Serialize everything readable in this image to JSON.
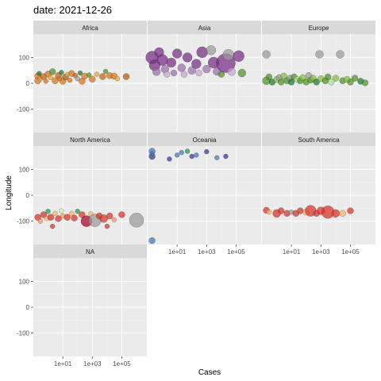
{
  "chart_data": {
    "type": "scatter",
    "title": "date: 2021-12-26",
    "xlabel": "Cases",
    "ylabel": "Longitude",
    "x_scale": "log10",
    "xlim": [
      0.1,
      5000000
    ],
    "ylim": [
      -190,
      190
    ],
    "x_ticks": [
      10,
      1000,
      100000
    ],
    "x_tick_labels": [
      "1e+01",
      "1e+03",
      "1e+05"
    ],
    "y_ticks": [
      100,
      0,
      -100
    ],
    "y_tick_labels": [
      "100",
      "0",
      "-100"
    ],
    "grid": true,
    "facets": [
      "Africa",
      "Asia",
      "Europe",
      "North America",
      "Oceania",
      "South America",
      "NA"
    ],
    "panel_background": "#EBEBEB",
    "strip_background": "#D9D9D9",
    "series": [
      {
        "facet": "Africa",
        "points": [
          {
            "x": 0.2,
            "y": 28,
            "r": 4,
            "color": "#D97014"
          },
          {
            "x": 0.2,
            "y": 10,
            "r": 4,
            "color": "#D97014"
          },
          {
            "x": 0.25,
            "y": 38,
            "r": 3,
            "color": "#1B7837"
          },
          {
            "x": 0.3,
            "y": 18,
            "r": 3,
            "color": "#E8A33D"
          },
          {
            "x": 0.5,
            "y": 26,
            "r": 4,
            "color": "#C5620A"
          },
          {
            "x": 0.7,
            "y": 8,
            "r": 3,
            "color": "#D97014"
          },
          {
            "x": 1,
            "y": 36,
            "r": 4,
            "color": "#D97014"
          },
          {
            "x": 1.5,
            "y": 22,
            "r": 3,
            "color": "#E8A33D"
          },
          {
            "x": 2,
            "y": 45,
            "r": 4,
            "color": "#4D9221"
          },
          {
            "x": 3,
            "y": 10,
            "r": 4,
            "color": "#D97014"
          },
          {
            "x": 5,
            "y": 30,
            "r": 4,
            "color": "#C5620A"
          },
          {
            "x": 6,
            "y": 18,
            "r": 3,
            "color": "#D97014"
          },
          {
            "x": 8,
            "y": 42,
            "r": 3,
            "color": "#1B7837"
          },
          {
            "x": 10,
            "y": 8,
            "r": 4,
            "color": "#D97014"
          },
          {
            "x": 15,
            "y": 24,
            "r": 4,
            "color": "#B05A0A"
          },
          {
            "x": 20,
            "y": 34,
            "r": 3,
            "color": "#E8A33D"
          },
          {
            "x": 30,
            "y": 12,
            "r": 3,
            "color": "#D97014"
          },
          {
            "x": 40,
            "y": 38,
            "r": 4,
            "color": "#D97014"
          },
          {
            "x": 70,
            "y": 30,
            "r": 3,
            "color": "#C5620A"
          },
          {
            "x": 100,
            "y": 18,
            "r": 3,
            "color": "#999999"
          },
          {
            "x": 150,
            "y": 40,
            "r": 3,
            "color": "#1B7837"
          },
          {
            "x": 200,
            "y": 8,
            "r": 4,
            "color": "#D97014"
          },
          {
            "x": 300,
            "y": 28,
            "r": 4,
            "color": "#D97014"
          },
          {
            "x": 600,
            "y": 32,
            "r": 3,
            "color": "#4D9221"
          },
          {
            "x": 1000,
            "y": 16,
            "r": 4,
            "color": "#D97014"
          },
          {
            "x": 2000,
            "y": 35,
            "r": 3,
            "color": "#E8A33D"
          },
          {
            "x": 5000,
            "y": 26,
            "r": 4,
            "color": "#C5620A"
          },
          {
            "x": 8000,
            "y": 46,
            "r": 3,
            "color": "#4D9221"
          },
          {
            "x": 15000,
            "y": 30,
            "r": 4,
            "color": "#D97014"
          },
          {
            "x": 30000,
            "y": 28,
            "r": 4,
            "color": "#D97014"
          },
          {
            "x": 50000,
            "y": 18,
            "r": 3,
            "color": "#E8A33D"
          },
          {
            "x": 200000,
            "y": 26,
            "r": 4,
            "color": "#B05A0A"
          }
        ]
      },
      {
        "facet": "Asia",
        "points": [
          {
            "x": 0.2,
            "y": 100,
            "r": 8,
            "color": "#762A83"
          },
          {
            "x": 0.3,
            "y": 70,
            "r": 7,
            "color": "#762A83"
          },
          {
            "x": 0.4,
            "y": 45,
            "r": 5,
            "color": "#9970AB"
          },
          {
            "x": 0.6,
            "y": 120,
            "r": 6,
            "color": "#762A83"
          },
          {
            "x": 1,
            "y": 90,
            "r": 7,
            "color": "#762A83"
          },
          {
            "x": 1.5,
            "y": 55,
            "r": 5,
            "color": "#9970AB"
          },
          {
            "x": 2,
            "y": 35,
            "r": 4,
            "color": "#C2A5CF"
          },
          {
            "x": 4,
            "y": 80,
            "r": 6,
            "color": "#762A83"
          },
          {
            "x": 6,
            "y": 40,
            "r": 4,
            "color": "#9970AB"
          },
          {
            "x": 10,
            "y": 115,
            "r": 6,
            "color": "#762A83"
          },
          {
            "x": 20,
            "y": 60,
            "r": 5,
            "color": "#9970AB"
          },
          {
            "x": 30,
            "y": 35,
            "r": 4,
            "color": "#C2A5CF"
          },
          {
            "x": 50,
            "y": 100,
            "r": 6,
            "color": "#762A83"
          },
          {
            "x": 100,
            "y": 50,
            "r": 5,
            "color": "#9970AB"
          },
          {
            "x": 200,
            "y": 75,
            "r": 6,
            "color": "#762A83"
          },
          {
            "x": 300,
            "y": 40,
            "r": 4,
            "color": "#C2A5CF"
          },
          {
            "x": 500,
            "y": 120,
            "r": 7,
            "color": "#762A83"
          },
          {
            "x": 1000,
            "y": 55,
            "r": 5,
            "color": "#9970AB"
          },
          {
            "x": 2000,
            "y": 128,
            "r": 6,
            "color": "#999999"
          },
          {
            "x": 3000,
            "y": 80,
            "r": 7,
            "color": "#762A83"
          },
          {
            "x": 5000,
            "y": 46,
            "r": 5,
            "color": "#9970AB"
          },
          {
            "x": 10000,
            "y": 35,
            "r": 4,
            "color": "#4D9221"
          },
          {
            "x": 20000,
            "y": 78,
            "r": 12,
            "color": "#762A83"
          },
          {
            "x": 30000,
            "y": 110,
            "r": 7,
            "color": "#999999"
          },
          {
            "x": 50000,
            "y": 45,
            "r": 5,
            "color": "#C2A5CF"
          },
          {
            "x": 150000,
            "y": 105,
            "r": 7,
            "color": "#762A83"
          },
          {
            "x": 250000,
            "y": 40,
            "r": 5,
            "color": "#4D9221"
          }
        ]
      },
      {
        "facet": "Europe",
        "points": [
          {
            "x": 0.2,
            "y": 112,
            "r": 5,
            "color": "#999999"
          },
          {
            "x": 0.2,
            "y": 10,
            "r": 5,
            "color": "#4D9221"
          },
          {
            "x": 0.3,
            "y": 25,
            "r": 4,
            "color": "#4D9221"
          },
          {
            "x": 0.5,
            "y": 5,
            "r": 4,
            "color": "#1B7837"
          },
          {
            "x": 1,
            "y": 15,
            "r": 4,
            "color": "#7FBC41"
          },
          {
            "x": 1.5,
            "y": 22,
            "r": 4,
            "color": "#999999"
          },
          {
            "x": 2,
            "y": 5,
            "r": 4,
            "color": "#4D9221"
          },
          {
            "x": 3,
            "y": 28,
            "r": 4,
            "color": "#7FBC41"
          },
          {
            "x": 5,
            "y": 10,
            "r": 4,
            "color": "#4D9221"
          },
          {
            "x": 8,
            "y": 20,
            "r": 4,
            "color": "#999999"
          },
          {
            "x": 10,
            "y": 5,
            "r": 4,
            "color": "#1B7837"
          },
          {
            "x": 15,
            "y": 25,
            "r": 4,
            "color": "#4D9221"
          },
          {
            "x": 25,
            "y": 15,
            "r": 4,
            "color": "#A6DBA0"
          },
          {
            "x": 40,
            "y": 10,
            "r": 4,
            "color": "#4D9221"
          },
          {
            "x": 60,
            "y": 22,
            "r": 4,
            "color": "#7FBC41"
          },
          {
            "x": 100,
            "y": 5,
            "r": 4,
            "color": "#4D9221"
          },
          {
            "x": 150,
            "y": 30,
            "r": 4,
            "color": "#999999"
          },
          {
            "x": 200,
            "y": 12,
            "r": 4,
            "color": "#4D9221"
          },
          {
            "x": 300,
            "y": 20,
            "r": 4,
            "color": "#7FBC41"
          },
          {
            "x": 500,
            "y": 5,
            "r": 4,
            "color": "#1B7837"
          },
          {
            "x": 800,
            "y": 112,
            "r": 5,
            "color": "#999999"
          },
          {
            "x": 1000,
            "y": 18,
            "r": 4,
            "color": "#7FBC41"
          },
          {
            "x": 2000,
            "y": 10,
            "r": 4,
            "color": "#4D9221"
          },
          {
            "x": 3000,
            "y": 25,
            "r": 4,
            "color": "#4D9221"
          },
          {
            "x": 5000,
            "y": 5,
            "r": 4,
            "color": "#A6DBA0"
          },
          {
            "x": 10000,
            "y": 20,
            "r": 4,
            "color": "#7FBC41"
          },
          {
            "x": 20000,
            "y": 112,
            "r": 5,
            "color": "#999999"
          },
          {
            "x": 30000,
            "y": 10,
            "r": 4,
            "color": "#4D9221"
          },
          {
            "x": 60000,
            "y": 15,
            "r": 4,
            "color": "#7FBC41"
          },
          {
            "x": 100000,
            "y": 5,
            "r": 4,
            "color": "#4D9221"
          },
          {
            "x": 200000,
            "y": 20,
            "r": 4,
            "color": "#4D9221"
          },
          {
            "x": 500000,
            "y": 8,
            "r": 4,
            "color": "#1B7837"
          },
          {
            "x": 1000000,
            "y": 2,
            "r": 4,
            "color": "#4D9221"
          }
        ]
      },
      {
        "facet": "North America",
        "points": [
          {
            "x": 0.2,
            "y": -85,
            "r": 4,
            "color": "#D73027"
          },
          {
            "x": 0.3,
            "y": -100,
            "r": 3,
            "color": "#FC8D59"
          },
          {
            "x": 0.5,
            "y": -75,
            "r": 4,
            "color": "#D73027"
          },
          {
            "x": 0.8,
            "y": -90,
            "r": 3,
            "color": "#FDAE61"
          },
          {
            "x": 1,
            "y": -62,
            "r": 3,
            "color": "#1A9850"
          },
          {
            "x": 1.5,
            "y": -85,
            "r": 4,
            "color": "#D73027"
          },
          {
            "x": 2,
            "y": -120,
            "r": 3,
            "color": "#D73027"
          },
          {
            "x": 3,
            "y": -70,
            "r": 3,
            "color": "#FDAE61"
          },
          {
            "x": 5,
            "y": -90,
            "r": 4,
            "color": "#D73027"
          },
          {
            "x": 8,
            "y": -60,
            "r": 3,
            "color": "#D9EF8B"
          },
          {
            "x": 10,
            "y": -80,
            "r": 3,
            "color": "#FC8D59"
          },
          {
            "x": 20,
            "y": -85,
            "r": 4,
            "color": "#D73027"
          },
          {
            "x": 40,
            "y": -70,
            "r": 3,
            "color": "#FDAE61"
          },
          {
            "x": 60,
            "y": -88,
            "r": 4,
            "color": "#D73027"
          },
          {
            "x": 100,
            "y": -62,
            "r": 3,
            "color": "#1A9850"
          },
          {
            "x": 200,
            "y": -75,
            "r": 4,
            "color": "#D73027"
          },
          {
            "x": 400,
            "y": -100,
            "r": 7,
            "color": "#A50026"
          },
          {
            "x": 800,
            "y": -72,
            "r": 3,
            "color": "#FDAE61"
          },
          {
            "x": 1500,
            "y": -97,
            "r": 8,
            "color": "#999999"
          },
          {
            "x": 3000,
            "y": -80,
            "r": 4,
            "color": "#D73027"
          },
          {
            "x": 6000,
            "y": -90,
            "r": 5,
            "color": "#D73027"
          },
          {
            "x": 10000,
            "y": -120,
            "r": 3,
            "color": "#D73027"
          },
          {
            "x": 15000,
            "y": -80,
            "r": 4,
            "color": "#D73027"
          },
          {
            "x": 30000,
            "y": -95,
            "r": 3,
            "color": "#FC8D59"
          },
          {
            "x": 100000,
            "y": -75,
            "r": 4,
            "color": "#D73027"
          },
          {
            "x": 1000000,
            "y": -96,
            "r": 9,
            "color": "#999999"
          }
        ]
      },
      {
        "facet": "Oceania",
        "points": [
          {
            "x": 0.2,
            "y": 170,
            "r": 4,
            "color": "#4575B4"
          },
          {
            "x": 0.2,
            "y": 150,
            "r": 4,
            "color": "#313695"
          },
          {
            "x": 0.2,
            "y": 160,
            "r": 3,
            "color": "#4575B4"
          },
          {
            "x": 0.2,
            "y": -175,
            "r": 4,
            "color": "#4575B4"
          },
          {
            "x": 3,
            "y": 140,
            "r": 3,
            "color": "#313695"
          },
          {
            "x": 10,
            "y": 155,
            "r": 3,
            "color": "#4575B4"
          },
          {
            "x": 20,
            "y": 165,
            "r": 3,
            "color": "#4575B4"
          },
          {
            "x": 50,
            "y": 170,
            "r": 3,
            "color": "#1A9850"
          },
          {
            "x": 100,
            "y": 150,
            "r": 3,
            "color": "#313695"
          },
          {
            "x": 200,
            "y": 155,
            "r": 3,
            "color": "#4575B4"
          },
          {
            "x": 1000,
            "y": 168,
            "r": 3,
            "color": "#313695"
          },
          {
            "x": 5000,
            "y": 145,
            "r": 3,
            "color": "#4575B4"
          },
          {
            "x": 20000,
            "y": 150,
            "r": 3,
            "color": "#313695"
          }
        ]
      },
      {
        "facet": "South America",
        "points": [
          {
            "x": 0.2,
            "y": -58,
            "r": 4,
            "color": "#D73027"
          },
          {
            "x": 0.3,
            "y": -65,
            "r": 3,
            "color": "#FDAE61"
          },
          {
            "x": 1,
            "y": -70,
            "r": 5,
            "color": "#D73027"
          },
          {
            "x": 2,
            "y": -60,
            "r": 4,
            "color": "#D73027"
          },
          {
            "x": 5,
            "y": -70,
            "r": 4,
            "color": "#D73027"
          },
          {
            "x": 10,
            "y": -65,
            "r": 3,
            "color": "#999999"
          },
          {
            "x": 20,
            "y": -70,
            "r": 4,
            "color": "#D73027"
          },
          {
            "x": 40,
            "y": -60,
            "r": 4,
            "color": "#D73027"
          },
          {
            "x": 100,
            "y": -65,
            "r": 4,
            "color": "#FDAE61"
          },
          {
            "x": 200,
            "y": -60,
            "r": 7,
            "color": "#D73027"
          },
          {
            "x": 500,
            "y": -70,
            "r": 4,
            "color": "#D73027"
          },
          {
            "x": 1000,
            "y": -60,
            "r": 5,
            "color": "#D73027"
          },
          {
            "x": 3000,
            "y": -65,
            "r": 8,
            "color": "#D73027"
          },
          {
            "x": 10000,
            "y": -70,
            "r": 5,
            "color": "#D73027"
          },
          {
            "x": 30000,
            "y": -70,
            "r": 4,
            "color": "#FDAE61"
          },
          {
            "x": 100000,
            "y": -60,
            "r": 4,
            "color": "#D73027"
          }
        ]
      },
      {
        "facet": "NA",
        "points": []
      }
    ]
  }
}
